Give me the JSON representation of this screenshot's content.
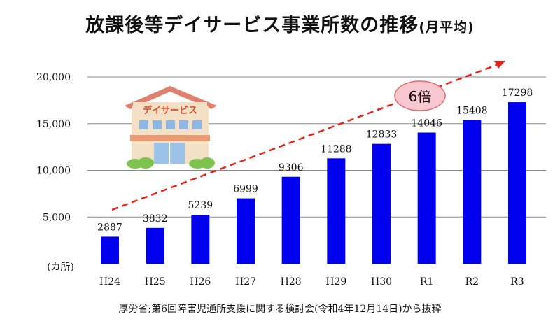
{
  "title": {
    "main": "放課後等デイサービス事業所数の推移",
    "sub": "(月平均)"
  },
  "source": "厚労省;第6回障害児通所支援に関する検討会(令和4年12月14日)から抜粋",
  "building_label": "デイサービス",
  "callout": "6倍",
  "colors": {
    "bar": "#0000ee",
    "trend": "#e8211b",
    "grid": "#8a8a8a",
    "callout_fill": "#f9c7cf",
    "roof": "#e0806d",
    "wall": "#f3e0c5",
    "window": "#8eb7e6",
    "sign_text": "#e04a2a",
    "shrub": "#7fc34f"
  },
  "chart_data": {
    "type": "bar",
    "categories": [
      "H24",
      "H25",
      "H26",
      "H27",
      "H28",
      "H29",
      "H30",
      "R1",
      "R2",
      "R3"
    ],
    "values": [
      2887,
      3832,
      5239,
      6999,
      9306,
      11288,
      12833,
      14046,
      15408,
      17298
    ],
    "ylim": [
      0,
      20000
    ],
    "yticks": [
      5000,
      10000,
      15000,
      20000
    ],
    "ytick_labels": [
      "5,000",
      "10,000",
      "15,000",
      "20,000"
    ],
    "yunit": "(カ所)",
    "grid": true
  }
}
